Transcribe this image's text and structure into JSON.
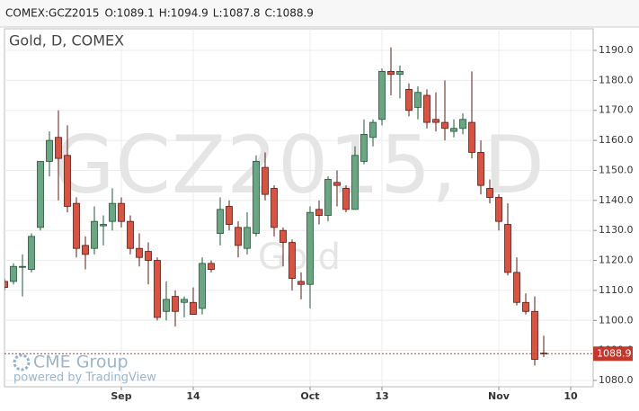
{
  "chart_data": {
    "type": "candlestick",
    "header": {
      "symbol": "COMEX:GCZ2015",
      "items": [
        "O:1089.1",
        "H:1094.9",
        "L:1087.8",
        "C:1088.9"
      ]
    },
    "title": "Gold, D, COMEX",
    "watermark": "GCZ2015, D",
    "watermark_sub": "Gold",
    "brand": "CME Group",
    "brand_sub": "powered by TradingView",
    "x": [
      0,
      1,
      2,
      3,
      4,
      5,
      6,
      7,
      8,
      9,
      10,
      11,
      12,
      13,
      14,
      15,
      16,
      17,
      18,
      19,
      20,
      21,
      22,
      23,
      24,
      25,
      26,
      27,
      28,
      29,
      30,
      31,
      32,
      33,
      34,
      35,
      36,
      37,
      38,
      39,
      40,
      41,
      42,
      43,
      44,
      45,
      46,
      47,
      48,
      49,
      50,
      51,
      52,
      53,
      54,
      55,
      56,
      57,
      58,
      59,
      60
    ],
    "open": [
      1113,
      1113,
      1118,
      1117,
      1131,
      1153,
      1161,
      1155,
      1139,
      1125,
      1124,
      1131.5,
      1133,
      1139,
      1133,
      1124,
      1123,
      1120,
      1103,
      1108,
      1106,
      1106,
      1104,
      1119,
      1129,
      1138,
      1131,
      1124,
      1129,
      1151,
      1144,
      1130,
      1126,
      1113,
      1112,
      1137,
      1135,
      1146,
      1144,
      1137,
      1153,
      1161,
      1167,
      1183,
      1182,
      1177,
      1171,
      1175,
      1167,
      1166,
      1163,
      1164,
      1166,
      1156,
      1144,
      1141,
      1132,
      1116,
      1106,
      1103,
      1089.1
    ],
    "high": [
      1114,
      1119,
      1122,
      1129,
      1153,
      1163,
      1170,
      1165,
      1141,
      1128,
      1138,
      1135,
      1144,
      1141,
      1135,
      1129,
      1126,
      1121,
      1113,
      1110,
      1108,
      1111,
      1121,
      1120,
      1141,
      1140,
      1133,
      1136,
      1155,
      1156,
      1145,
      1131,
      1127,
      1116,
      1138,
      1140,
      1148,
      1150,
      1145,
      1158,
      1167,
      1167,
      1184,
      1191,
      1185,
      1179,
      1178,
      1177,
      1176,
      1180,
      1167,
      1169,
      1183,
      1160,
      1147,
      1142,
      1139,
      1121,
      1109,
      1108,
      1094.9
    ],
    "low": [
      1110,
      1112,
      1108,
      1116,
      1130,
      1148,
      1140,
      1136,
      1121,
      1117,
      1122,
      1125,
      1130,
      1131,
      1122,
      1118,
      1112,
      1100,
      1100,
      1098,
      1101,
      1102,
      1102,
      1116,
      1125,
      1130,
      1121,
      1122,
      1128,
      1140,
      1128,
      1118,
      1110,
      1107,
      1104,
      1132,
      1133,
      1138,
      1136,
      1137,
      1152,
      1158,
      1165,
      1175,
      1174,
      1168,
      1167,
      1164,
      1163,
      1160,
      1161,
      1162,
      1154,
      1142,
      1139,
      1130,
      1115,
      1105,
      1102,
      1085,
      1087.8
    ],
    "close": [
      1111,
      1118,
      1118,
      1128,
      1153,
      1160,
      1154,
      1138,
      1124,
      1122,
      1133,
      1132,
      1139,
      1133,
      1124,
      1121,
      1120,
      1101,
      1107,
      1103,
      1107,
      1102,
      1119,
      1117,
      1137,
      1132,
      1125,
      1131,
      1153,
      1142,
      1131,
      1126,
      1114,
      1112,
      1136,
      1135,
      1147,
      1145,
      1137,
      1155,
      1162,
      1166,
      1183,
      1182,
      1183,
      1170,
      1176,
      1166,
      1166,
      1164,
      1164,
      1167,
      1156,
      1145,
      1141,
      1133,
      1116,
      1106,
      1103,
      1087,
      1088.9
    ],
    "up_color": "#6ba583",
    "up_border": "#225437",
    "down_color": "#d75442",
    "down_border": "#5b1a13",
    "last_price": 1088.9,
    "last_price_color": "#c0392b",
    "xlim": [
      0,
      65.5
    ],
    "xticks": [
      {
        "value": 13,
        "label": "Sep"
      },
      {
        "value": 21,
        "label": "14"
      },
      {
        "value": 34,
        "label": "Oct"
      },
      {
        "value": 42,
        "label": "13"
      },
      {
        "value": 55,
        "label": "Nov"
      },
      {
        "value": 63,
        "label": "10"
      }
    ],
    "ylim": [
      1077.9,
      1197.2
    ],
    "yticks": [
      {
        "value": 1080,
        "label": "1080.0"
      },
      {
        "value": 1090,
        "label": "1090.0"
      },
      {
        "value": 1100,
        "label": "1100.0"
      },
      {
        "value": 1110,
        "label": "1110.0"
      },
      {
        "value": 1120,
        "label": "1120.0"
      },
      {
        "value": 1130,
        "label": "1130.0"
      },
      {
        "value": 1140,
        "label": "1140.0"
      },
      {
        "value": 1150,
        "label": "1150.0"
      },
      {
        "value": 1160,
        "label": "1160.0"
      },
      {
        "value": 1170,
        "label": "1170.0"
      },
      {
        "value": 1180,
        "label": "1180.0"
      },
      {
        "value": 1190,
        "label": "1190.0"
      }
    ],
    "grid": true
  }
}
